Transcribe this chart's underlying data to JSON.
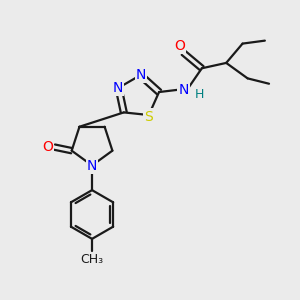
{
  "bg_color": "#ebebeb",
  "bond_color": "#1a1a1a",
  "bond_width": 1.6,
  "atom_colors": {
    "N": "#0000ff",
    "O": "#ff0000",
    "S": "#cccc00",
    "H": "#008080",
    "C": "#1a1a1a"
  },
  "font_size_atoms": 10,
  "font_size_small": 9,
  "figsize": [
    3.0,
    3.0
  ],
  "dpi": 100,
  "xlim": [
    0,
    10
  ],
  "ylim": [
    0,
    10
  ]
}
